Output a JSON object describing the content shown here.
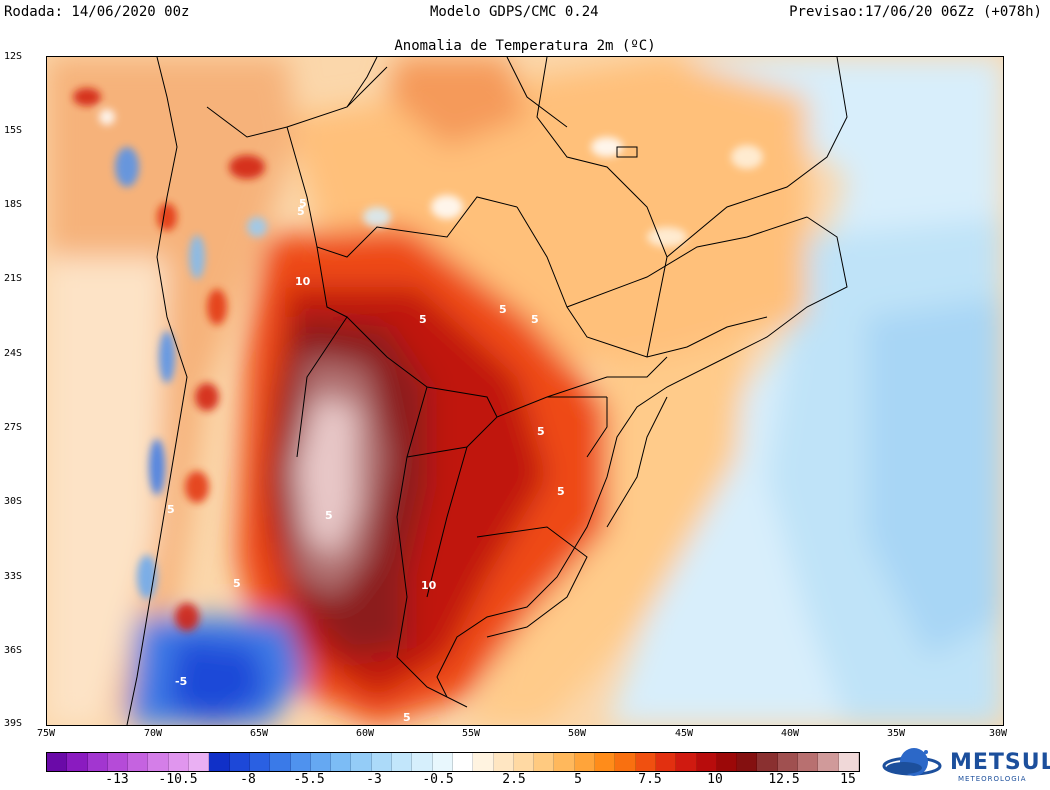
{
  "header": {
    "run": "Rodada: 14/06/2020 00z",
    "model": "Modelo GDPS/CMC 0.24",
    "forecast": "Previsao:17/06/20 06Zz (+078h)",
    "subtitle": "Anomalia de Temperatura 2m (ºC)"
  },
  "map": {
    "lat_labels": [
      "12S",
      "15S",
      "18S",
      "21S",
      "24S",
      "27S",
      "30S",
      "33S",
      "36S",
      "39S"
    ],
    "lon_labels": [
      "75W",
      "70W",
      "65W",
      "60W",
      "55W",
      "50W",
      "45W",
      "40W",
      "35W",
      "30W"
    ],
    "contour_labels": [
      "5",
      "5",
      "10",
      "5",
      "5",
      "5",
      "5",
      "5",
      "5",
      "10",
      "5",
      "5",
      "-5",
      "5"
    ]
  },
  "colorbar": {
    "ticks": [
      "-13",
      "-10.5",
      "-8",
      "-5.5",
      "-3",
      "-0.5",
      "2.5",
      "5",
      "7.5",
      "10",
      "12.5",
      "15"
    ],
    "colors": [
      "#6a0aa8",
      "#8a1bc0",
      "#a236d0",
      "#b54bd8",
      "#c563e0",
      "#d47ee8",
      "#e096ee",
      "#eab0f3",
      "#1030c8",
      "#1d48d8",
      "#2a60e2",
      "#3a7ae8",
      "#4f92ee",
      "#65a8f2",
      "#7cbcf5",
      "#94ccf7",
      "#acdaf9",
      "#c2e6fb",
      "#d6effc",
      "#e8f7fd",
      "#ffffff",
      "#fff3e0",
      "#ffe6c2",
      "#ffd9a3",
      "#ffca80",
      "#ffb85c",
      "#ffa43a",
      "#ff8c1a",
      "#f97010",
      "#f05010",
      "#e23010",
      "#d01a10",
      "#b80c0c",
      "#9c0808",
      "#841010",
      "#8a3030",
      "#a05050",
      "#b87070",
      "#d09a9a",
      "#f0d8d8"
    ]
  },
  "logo": {
    "name": "METSUL",
    "subtitle": "METEOROLOGIA"
  }
}
